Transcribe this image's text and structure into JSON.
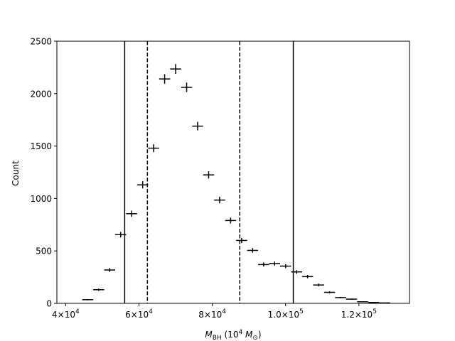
{
  "chart_data": {
    "type": "scatter",
    "title": "",
    "xlabel_parts": {
      "symbol": "M",
      "subscript": "BH",
      "unit_open": " (10",
      "unit_exp": "4",
      "unit_symbol": " M",
      "unit_sub": "⊙",
      "unit_close": ")"
    },
    "ylabel": "Count",
    "xlim": [
      37600,
      133800
    ],
    "ylim": [
      0,
      2500
    ],
    "x_ticks": [
      {
        "value": 40000,
        "mantissa": "4",
        "base": "×10",
        "exp": "4"
      },
      {
        "value": 60000,
        "mantissa": "6",
        "base": "×10",
        "exp": "4"
      },
      {
        "value": 80000,
        "mantissa": "8",
        "base": "×10",
        "exp": "4"
      },
      {
        "value": 100000,
        "mantissa": "1.0",
        "base": "×10",
        "exp": "5"
      },
      {
        "value": 120000,
        "mantissa": "1.2",
        "base": "×10",
        "exp": "5"
      }
    ],
    "y_ticks": [
      "0",
      "500",
      "1000",
      "1500",
      "2000",
      "2500"
    ],
    "series": [
      {
        "marker": "errorbar-cross",
        "color": "#000000",
        "bin_half_width": 1500,
        "points": [
          {
            "x": 46000,
            "y": 35,
            "yerr": 6
          },
          {
            "x": 49000,
            "y": 130,
            "yerr": 11
          },
          {
            "x": 52000,
            "y": 318,
            "yerr": 18
          },
          {
            "x": 55000,
            "y": 655,
            "yerr": 26
          },
          {
            "x": 58000,
            "y": 855,
            "yerr": 29
          },
          {
            "x": 61000,
            "y": 1130,
            "yerr": 34
          },
          {
            "x": 64000,
            "y": 1480,
            "yerr": 38
          },
          {
            "x": 67000,
            "y": 2140,
            "yerr": 46
          },
          {
            "x": 70000,
            "y": 2235,
            "yerr": 47
          },
          {
            "x": 73000,
            "y": 2060,
            "yerr": 45
          },
          {
            "x": 76000,
            "y": 1690,
            "yerr": 41
          },
          {
            "x": 79000,
            "y": 1225,
            "yerr": 35
          },
          {
            "x": 82000,
            "y": 985,
            "yerr": 31
          },
          {
            "x": 85000,
            "y": 790,
            "yerr": 28
          },
          {
            "x": 88000,
            "y": 600,
            "yerr": 24
          },
          {
            "x": 91000,
            "y": 505,
            "yerr": 22
          },
          {
            "x": 94000,
            "y": 370,
            "yerr": 19
          },
          {
            "x": 97000,
            "y": 380,
            "yerr": 19
          },
          {
            "x": 100000,
            "y": 355,
            "yerr": 19
          },
          {
            "x": 103000,
            "y": 300,
            "yerr": 17
          },
          {
            "x": 106000,
            "y": 255,
            "yerr": 16
          },
          {
            "x": 109000,
            "y": 175,
            "yerr": 13
          },
          {
            "x": 112000,
            "y": 105,
            "yerr": 10
          },
          {
            "x": 115000,
            "y": 55,
            "yerr": 7
          },
          {
            "x": 118000,
            "y": 40,
            "yerr": 6
          },
          {
            "x": 121000,
            "y": 15,
            "yerr": 4
          },
          {
            "x": 124000,
            "y": 8,
            "yerr": 3
          },
          {
            "x": 127000,
            "y": 4,
            "yerr": 2
          }
        ]
      }
    ],
    "vlines": [
      {
        "x": 56100,
        "style": "solid"
      },
      {
        "x": 62300,
        "style": "dashed"
      },
      {
        "x": 87500,
        "style": "dashed"
      },
      {
        "x": 102100,
        "style": "solid"
      }
    ],
    "grid": false,
    "legend": "none"
  }
}
